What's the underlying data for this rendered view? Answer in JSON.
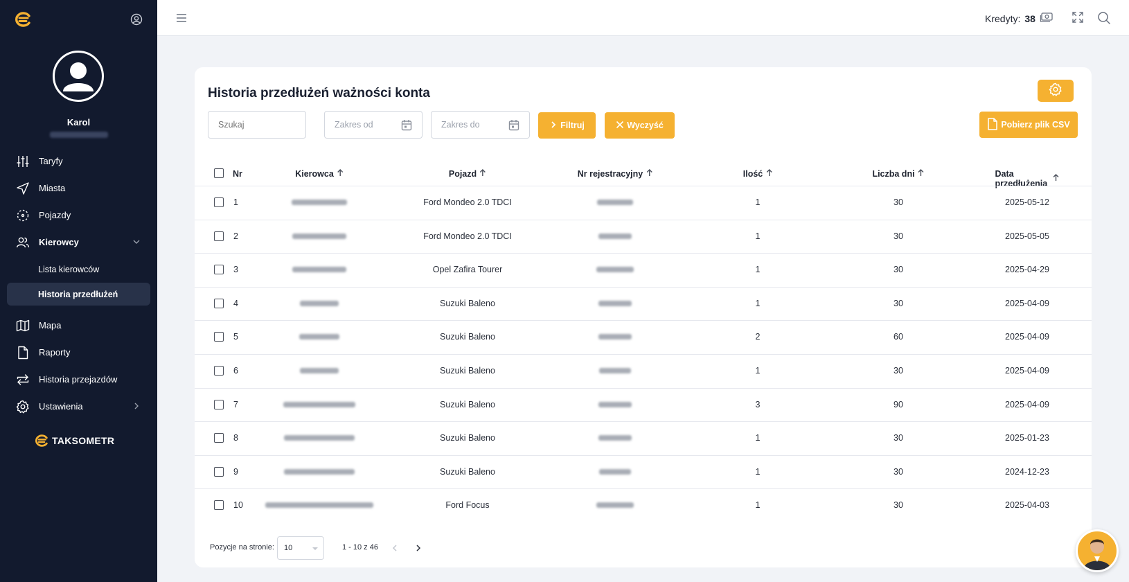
{
  "user": {
    "name": "Karol"
  },
  "nav": {
    "items": [
      {
        "label": "Taryfy",
        "icon": "sliders-icon"
      },
      {
        "label": "Miasta",
        "icon": "navigation-icon"
      },
      {
        "label": "Pojazdy",
        "icon": "vehicle-scan-icon"
      },
      {
        "label": "Kierowcy",
        "icon": "users-icon"
      },
      {
        "label": "Mapa",
        "icon": "map-icon"
      },
      {
        "label": "Raporty",
        "icon": "document-icon"
      },
      {
        "label": "Historia przejazdów",
        "icon": "repeat-icon"
      },
      {
        "label": "Ustawienia",
        "icon": "gear-icon"
      }
    ],
    "sub_items": [
      {
        "label": "Lista kierowców"
      },
      {
        "label": "Historia przedłużeń"
      }
    ]
  },
  "brand": {
    "name": "TAKSOMETR",
    "accent": "#f5b131"
  },
  "topbar": {
    "credits_label": "Kredyty:",
    "credits_value": "38"
  },
  "page": {
    "title": "Historia przedłużeń ważności konta",
    "search_placeholder": "Szukaj",
    "date_from_placeholder": "Zakres od",
    "date_to_placeholder": "Zakres do",
    "filter_label": "Filtruj",
    "clear_label": "Wyczyść",
    "csv_label": "Pobierz plik CSV"
  },
  "table": {
    "columns": [
      "Nr",
      "Kierowca",
      "Pojazd",
      "Nr rejestracyjny",
      "Ilość",
      "Liczba dni",
      "Data przedłużenia"
    ],
    "rows": [
      {
        "nr": "1",
        "vehicle": "Ford Mondeo 2.0 TDCI",
        "qty": "1",
        "days": "30",
        "date": "2025-05-12"
      },
      {
        "nr": "2",
        "vehicle": "Ford Mondeo 2.0 TDCI",
        "qty": "1",
        "days": "30",
        "date": "2025-05-05"
      },
      {
        "nr": "3",
        "vehicle": "Opel Zafira Tourer",
        "qty": "1",
        "days": "30",
        "date": "2025-04-29"
      },
      {
        "nr": "4",
        "vehicle": "Suzuki Baleno",
        "qty": "1",
        "days": "30",
        "date": "2025-04-09"
      },
      {
        "nr": "5",
        "vehicle": "Suzuki Baleno",
        "qty": "2",
        "days": "60",
        "date": "2025-04-09"
      },
      {
        "nr": "6",
        "vehicle": "Suzuki Baleno",
        "qty": "1",
        "days": "30",
        "date": "2025-04-09"
      },
      {
        "nr": "7",
        "vehicle": "Suzuki Baleno",
        "qty": "3",
        "days": "90",
        "date": "2025-04-09"
      },
      {
        "nr": "8",
        "vehicle": "Suzuki Baleno",
        "qty": "1",
        "days": "30",
        "date": "2025-01-23"
      },
      {
        "nr": "9",
        "vehicle": "Suzuki Baleno",
        "qty": "1",
        "days": "30",
        "date": "2024-12-23"
      },
      {
        "nr": "10",
        "vehicle": "Ford Focus",
        "qty": "1",
        "days": "30",
        "date": "2025-04-03"
      }
    ]
  },
  "pagination": {
    "label": "Pozycje na stronie:",
    "page_size": "10",
    "range": "1 - 10 z 46"
  }
}
